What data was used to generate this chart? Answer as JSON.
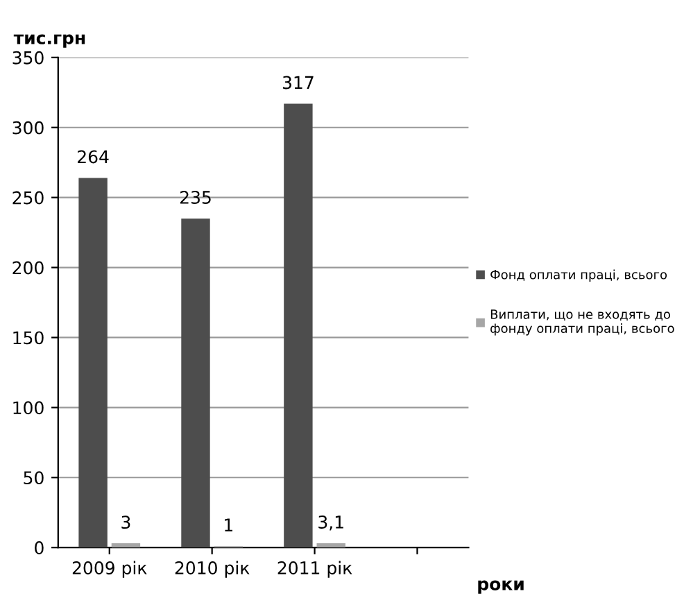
{
  "chart_data": {
    "type": "bar",
    "categories": [
      "2009 рік",
      "2010 рік",
      "2011 рік",
      null
    ],
    "series": [
      {
        "name": "Фонд оплати праці, всього",
        "color": "#4d4d4d",
        "values": [
          264,
          235,
          317,
          null
        ],
        "value_labels": [
          "264",
          "235",
          "317",
          null
        ]
      },
      {
        "name": "Виплати, що не входять до фонду оплати праці, всього",
        "color": "#a6a6a6",
        "values": [
          3,
          1,
          3.1,
          null
        ],
        "value_labels": [
          "3",
          "1",
          "3,1",
          null
        ]
      }
    ],
    "ylabel": "тис.грн",
    "xlabel": "роки",
    "ylim": [
      0,
      350
    ],
    "yticks": [
      0,
      50,
      100,
      150,
      200,
      250,
      300,
      350
    ],
    "grid": "y",
    "legend": "right"
  }
}
